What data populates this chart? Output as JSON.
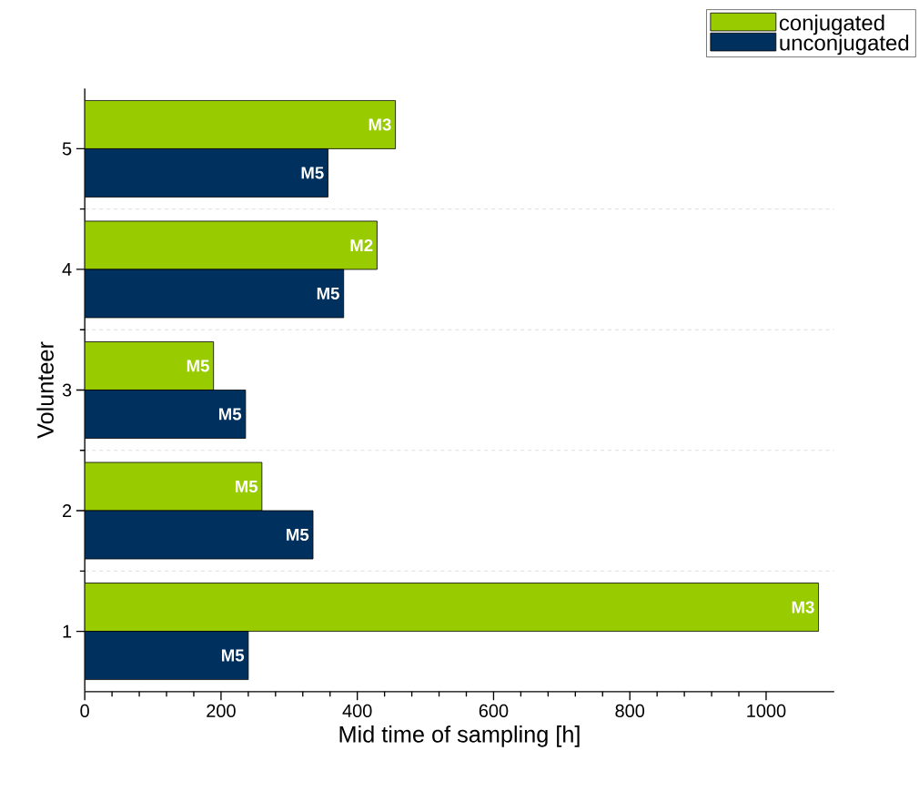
{
  "chart_data": {
    "type": "bar",
    "orientation": "horizontal",
    "xlabel": "Mid time of sampling [h]",
    "ylabel": "Volunteer",
    "categories": [
      "5",
      "4",
      "3",
      "2",
      "1"
    ],
    "series": [
      {
        "name": "conjugated",
        "color": "#99cc00",
        "values": [
          456,
          429,
          189,
          260,
          1077
        ],
        "value_labels": [
          "M3",
          "M2",
          "M5",
          "M5",
          "M3"
        ]
      },
      {
        "name": "unconjugated",
        "color": "#00305e",
        "values": [
          357,
          380,
          236,
          335,
          240
        ],
        "value_labels": [
          "M5",
          "M5",
          "M5",
          "M5",
          "M5"
        ]
      }
    ],
    "xlim": [
      0,
      1100
    ],
    "xticks": [
      0,
      200,
      400,
      600,
      800,
      1000
    ],
    "grid": "y",
    "legend": "top right"
  }
}
